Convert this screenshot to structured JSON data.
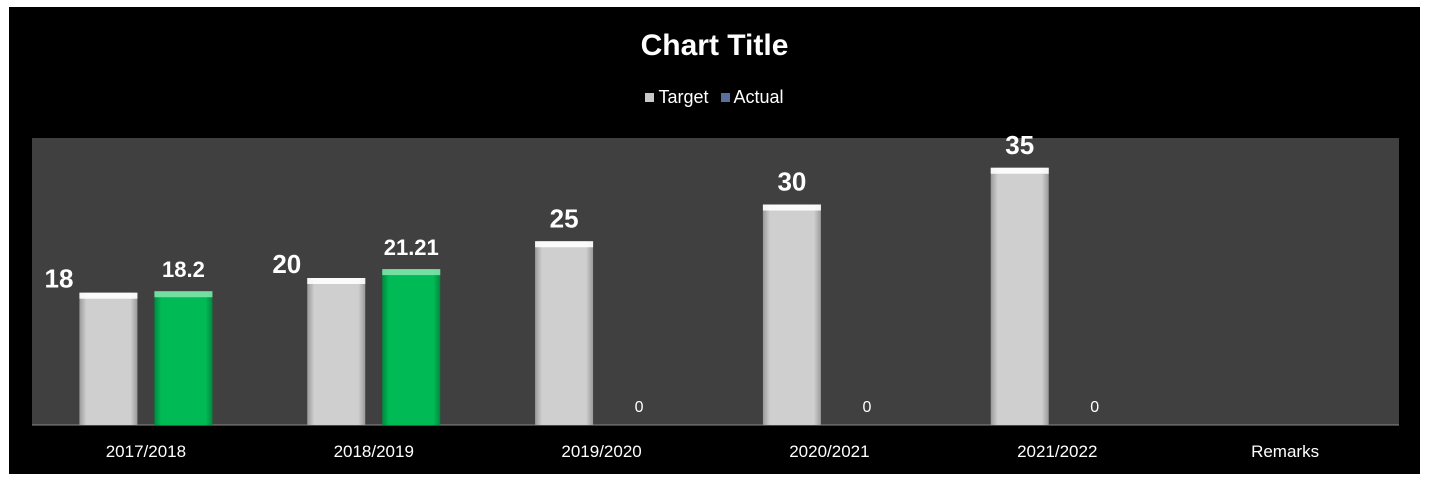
{
  "chart_data": {
    "type": "bar",
    "title": "Chart Title",
    "xlabel": "",
    "ylabel": "",
    "categories": [
      "2017/2018",
      "2018/2019",
      "2019/2020",
      "2020/2021",
      "2021/2022",
      "Remarks"
    ],
    "series": [
      {
        "name": "Target",
        "values": [
          18,
          20,
          25,
          30,
          35,
          null
        ],
        "labels": [
          "18",
          "20",
          "25",
          "30",
          "35",
          ""
        ]
      },
      {
        "name": "Actual",
        "values": [
          18.2,
          21.21,
          0,
          0,
          0,
          null
        ],
        "labels": [
          "18.2",
          "21.21",
          "0",
          "0",
          "0",
          ""
        ]
      }
    ],
    "ylim": [
      0,
      38
    ],
    "grid": false,
    "legend": "top"
  },
  "colors": {
    "background": "#000000",
    "plot_area": "#404040",
    "target": "#c8c8c8",
    "actual": "#00b050",
    "text": "#ffffff"
  }
}
